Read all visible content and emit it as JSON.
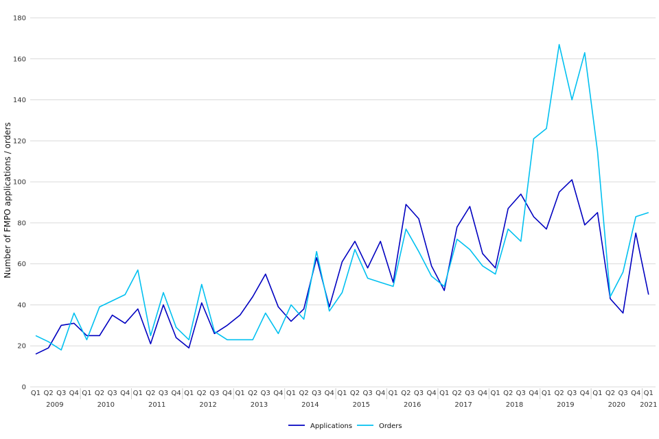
{
  "chart_data": {
    "type": "line",
    "title": "",
    "xlabel": "",
    "ylabel": "Number of FMPO applications / orders",
    "ylim": [
      0,
      180
    ],
    "yticks": [
      0,
      20,
      40,
      60,
      80,
      100,
      120,
      140,
      160,
      180
    ],
    "grid": true,
    "legend_position": "bottom-center",
    "quarters": [
      "Q1",
      "Q2",
      "Q3",
      "Q4",
      "Q1",
      "Q2",
      "Q3",
      "Q4",
      "Q1",
      "Q2",
      "Q3",
      "Q4",
      "Q1",
      "Q2",
      "Q3",
      "Q4",
      "Q1",
      "Q2",
      "Q3",
      "Q4",
      "Q1",
      "Q2",
      "Q3",
      "Q4",
      "Q1",
      "Q2",
      "Q3",
      "Q4",
      "Q1",
      "Q2",
      "Q3",
      "Q4",
      "Q1",
      "Q2",
      "Q3",
      "Q4",
      "Q1",
      "Q2",
      "Q3",
      "Q4",
      "Q1",
      "Q2",
      "Q3",
      "Q4",
      "Q1",
      "Q2",
      "Q3",
      "Q4",
      "Q1"
    ],
    "years": [
      "2009",
      "2010",
      "2011",
      "2012",
      "2013",
      "2014",
      "2015",
      "2016",
      "2017",
      "2018",
      "2019",
      "2020",
      "2021"
    ],
    "series": [
      {
        "name": "Applications",
        "color": "#0000c0",
        "values": [
          16,
          19,
          30,
          31,
          25,
          25,
          35,
          31,
          38,
          21,
          40,
          24,
          19,
          41,
          26,
          30,
          35,
          44,
          55,
          39,
          32,
          38,
          63,
          39,
          61,
          71,
          58,
          71,
          51,
          89,
          82,
          59,
          47,
          78,
          88,
          65,
          58,
          87,
          94,
          83,
          77,
          95,
          101,
          79,
          85,
          43,
          36,
          75,
          45
        ]
      },
      {
        "name": "Orders",
        "color": "#00c0f0",
        "values": [
          25,
          22,
          18,
          36,
          23,
          39,
          42,
          45,
          57,
          25,
          46,
          29,
          23,
          50,
          27,
          23,
          23,
          23,
          36,
          26,
          40,
          33,
          66,
          37,
          46,
          67,
          53,
          51,
          49,
          77,
          66,
          54,
          49,
          72,
          67,
          59,
          55,
          77,
          71,
          121,
          126,
          167,
          140,
          163,
          115,
          44,
          56,
          83,
          85
        ]
      }
    ]
  }
}
